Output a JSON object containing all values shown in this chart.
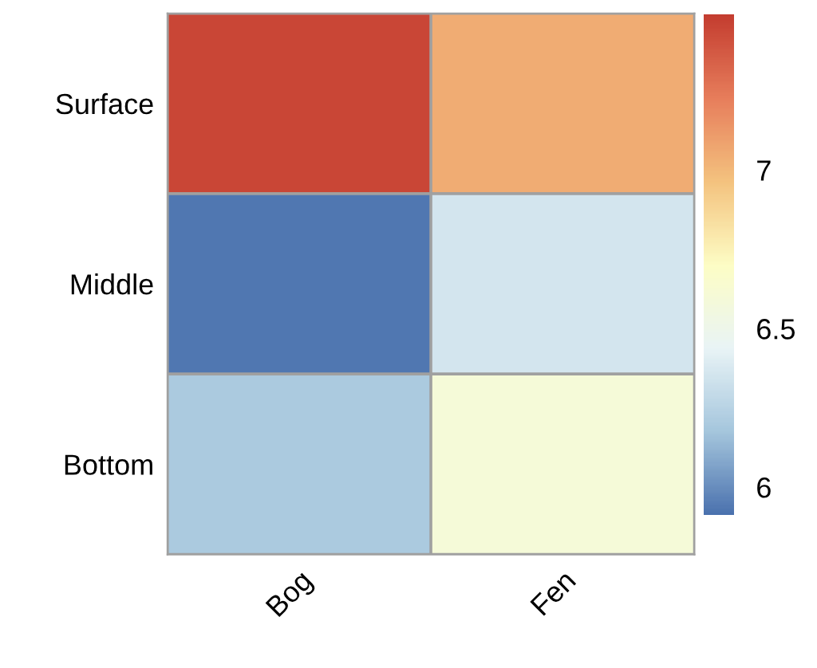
{
  "chart_data": {
    "type": "heatmap",
    "categories": [
      "Bog",
      "Fen"
    ],
    "y_categories": [
      "Surface",
      "Middle",
      "Bottom"
    ],
    "cells": [
      [
        7.45,
        7.05
      ],
      [
        5.93,
        6.35
      ],
      [
        6.2,
        6.6
      ]
    ],
    "clim": [
      5.91,
      7.49
    ],
    "cticks": [
      6,
      6.5,
      7
    ]
  }
}
